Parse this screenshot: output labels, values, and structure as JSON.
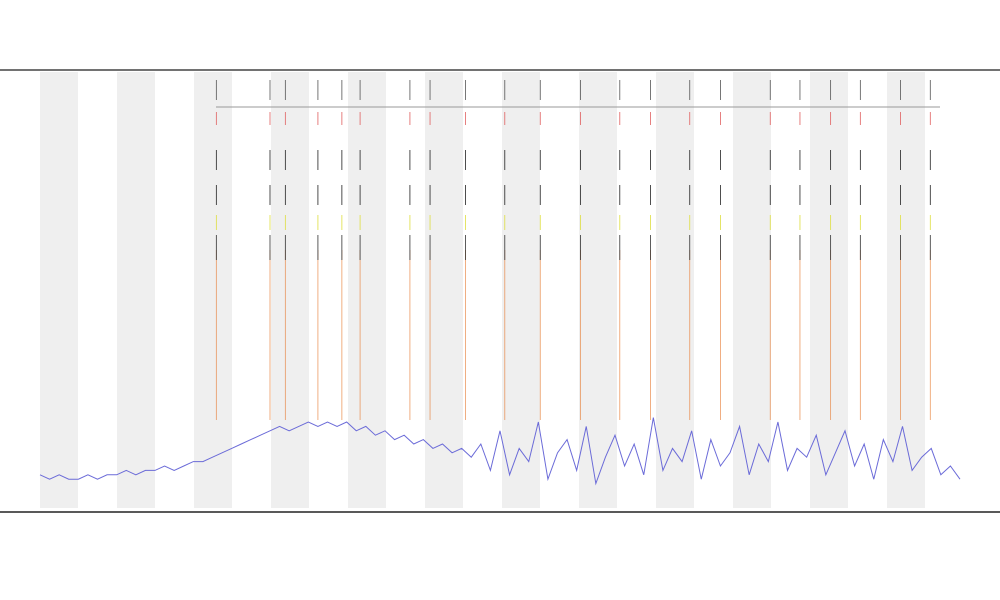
{
  "chart_data": {
    "type": "line",
    "trace": {
      "color": "#6b6bd8",
      "values": [
        8,
        7,
        8,
        7,
        7,
        8,
        7,
        8,
        8,
        9,
        8,
        9,
        9,
        10,
        9,
        10,
        11,
        11,
        12,
        13,
        14,
        15,
        16,
        17,
        18,
        19,
        18,
        19,
        20,
        19,
        20,
        19,
        20,
        18,
        19,
        17,
        18,
        16,
        17,
        15,
        16,
        14,
        15,
        13,
        14,
        12,
        15,
        9,
        18,
        8,
        14,
        11,
        20,
        7,
        13,
        16,
        9,
        19,
        6,
        12,
        17,
        10,
        15,
        8,
        21,
        9,
        14,
        11,
        18,
        7,
        16,
        10,
        13,
        19,
        8,
        15,
        11,
        20,
        9,
        14,
        12,
        17,
        8,
        13,
        18,
        10,
        15,
        7,
        16,
        11,
        19,
        9,
        12,
        14,
        8,
        10,
        7
      ]
    },
    "events": {
      "color": "#e8823c",
      "x": [
        18.4,
        24,
        25.6,
        29,
        31.5,
        33.4,
        38.6,
        40.7,
        44.4,
        48.5,
        52.2,
        56.4,
        60.5,
        63.7,
        67.8,
        71,
        76.2,
        79.3,
        82.5,
        85.6,
        89.8,
        92.9
      ]
    },
    "xlim": [
      0,
      96
    ],
    "ylim": [
      0,
      100
    ]
  }
}
